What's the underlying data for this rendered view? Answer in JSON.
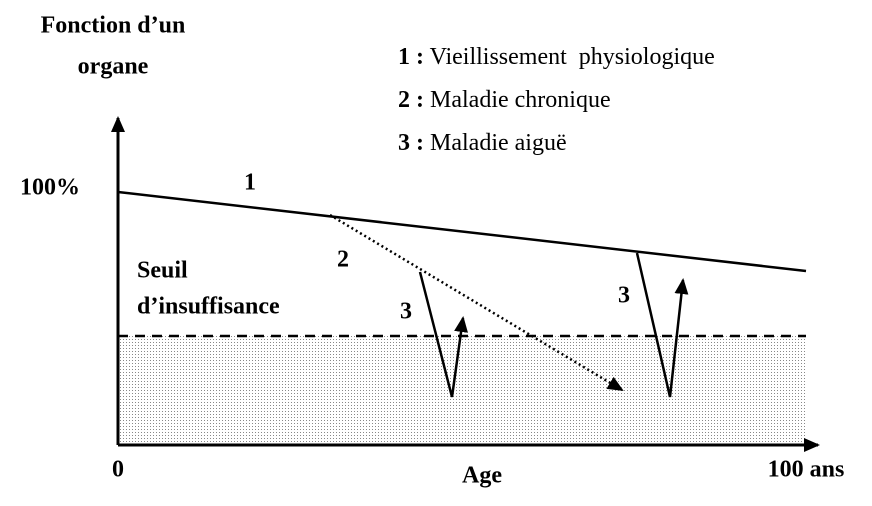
{
  "axes": {
    "y_label": [
      "Fonction d’un",
      "organe"
    ],
    "y_top": "100%",
    "x_start": "0",
    "x_label": "Age",
    "x_end": "100 ans"
  },
  "threshold": {
    "label": [
      "Seuil",
      "d’insuffisance"
    ]
  },
  "legend": [
    {
      "number": "1 :",
      "text": "Vieillissement  physiologique"
    },
    {
      "number": "2 :",
      "text": "Maladie chronique"
    },
    {
      "number": "3 :",
      "text": "Maladie aiguë"
    }
  ],
  "curve_labels": [
    "1",
    "2",
    "3",
    "3"
  ]
}
